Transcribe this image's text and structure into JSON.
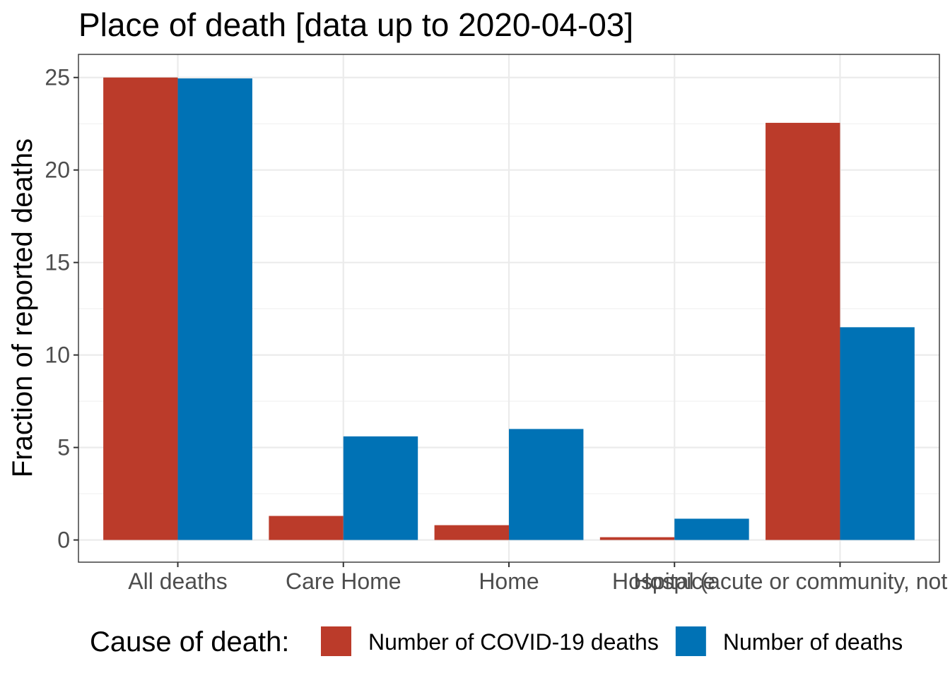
{
  "chart_data": {
    "type": "bar",
    "title": "Place of death [data up to 2020-04-03]",
    "xlabel": "",
    "ylabel": "Fraction of reported deaths",
    "categories": [
      "All deaths",
      "Care Home",
      "Home",
      "Hospice",
      "Hospital (acute or community, not psychiatric)"
    ],
    "series": [
      {
        "name": "Number of COVID-19 deaths",
        "color": "#BB3B2A",
        "values": [
          25.0,
          1.3,
          0.8,
          0.15,
          22.55
        ]
      },
      {
        "name": "Number of deaths",
        "color": "#0072B5",
        "values": [
          24.95,
          5.6,
          6.0,
          1.15,
          11.5
        ]
      }
    ],
    "ylim": [
      -1.2,
      26.25
    ],
    "yticks": [
      0,
      5,
      10,
      15,
      20,
      25
    ],
    "grid": true,
    "legend": {
      "title": "Cause of death:",
      "position": "bottom"
    },
    "colors": {
      "panel_border": "#333333",
      "grid_major": "#ebebeb",
      "grid_minor": "#f2f2f2",
      "tick_text": "#4d4d4d"
    }
  }
}
